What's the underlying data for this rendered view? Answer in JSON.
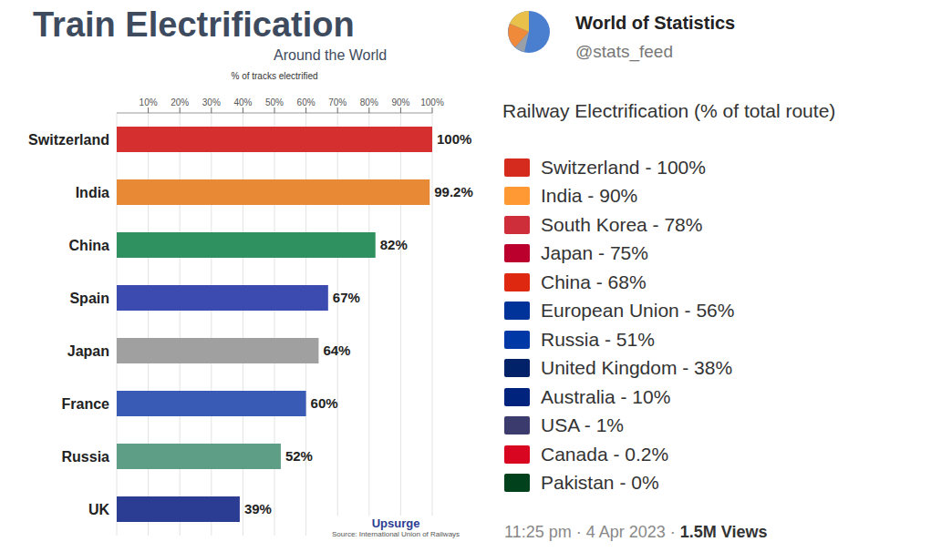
{
  "chart_data": {
    "type": "bar",
    "orientation": "horizontal",
    "title": "Train Electrification",
    "subtitle": "Around the World",
    "x_label": "% of tracks electrified",
    "categories": [
      "Switzerland",
      "India",
      "China",
      "Spain",
      "Japan",
      "France",
      "Russia",
      "UK"
    ],
    "values": [
      100,
      99.2,
      82,
      67,
      64,
      60,
      52,
      39
    ],
    "value_labels": [
      "100%",
      "99.2%",
      "82%",
      "67%",
      "64%",
      "60%",
      "52%",
      "39%"
    ],
    "colors": [
      "#d62f2f",
      "#e88a35",
      "#2f9160",
      "#3b4bb0",
      "#a0a0a0",
      "#3a5bb5",
      "#5f9e86",
      "#2b3d92"
    ],
    "xlim": [
      0,
      100
    ],
    "xticks": [
      {
        "value": 10,
        "label": "10%"
      },
      {
        "value": 20,
        "label": "20%"
      },
      {
        "value": 30,
        "label": "30%"
      },
      {
        "value": 40,
        "label": "40%"
      },
      {
        "value": 50,
        "label": "50%"
      },
      {
        "value": 60,
        "label": "60%"
      },
      {
        "value": 70,
        "label": "70%"
      },
      {
        "value": 80,
        "label": "80%"
      },
      {
        "value": 90,
        "label": "90%"
      },
      {
        "value": 100,
        "label": "100%"
      }
    ],
    "data_labels": true,
    "grid": true,
    "annotations": [
      "Upsurge",
      "Source: International Union of Railways"
    ]
  },
  "tweet": {
    "account_name": "World of Statistics",
    "handle": "@stats_feed",
    "heading": "Railway Electrification (% of total route)",
    "items": [
      "Switzerland - 100%",
      "India - 90%",
      "South Korea - 78%",
      "Japan - 75%",
      "China - 68%",
      "European Union - 56%",
      "Russia - 51%",
      "United Kingdom - 38%",
      "Australia - 10%",
      "USA - 1%",
      "Canada - 0.2%",
      "Pakistan - 0%"
    ],
    "timestamp": "11:25 pm · 4 Apr 2023 ·",
    "views": "1.5M Views"
  }
}
